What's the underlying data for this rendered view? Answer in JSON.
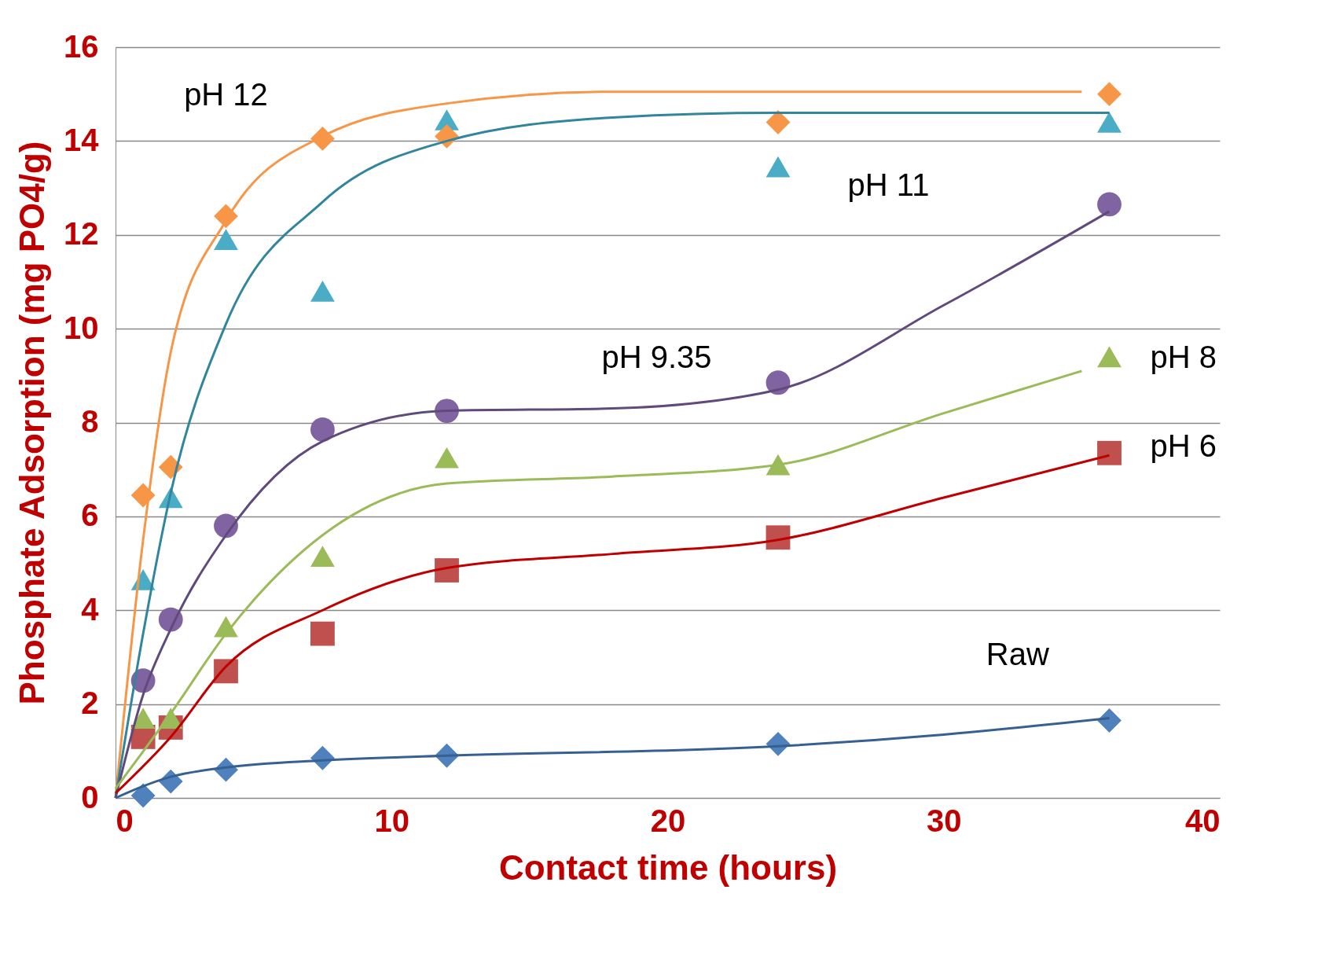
{
  "chart_data": {
    "type": "scatter",
    "xlabel": "Contact time (hours)",
    "ylabel": "Phosphate Adsorption (mg PO4/g)",
    "xlim": [
      0,
      40
    ],
    "xticks": [
      0,
      10,
      20,
      30,
      40
    ],
    "ylim": [
      0,
      16
    ],
    "yticks": [
      0,
      2,
      4,
      6,
      8,
      10,
      12,
      14,
      16
    ],
    "grid": "y",
    "series": [
      {
        "type": "line",
        "color": "#f79646",
        "x": [
          0,
          1,
          2,
          4,
          7.5,
          12,
          18,
          24,
          35
        ],
        "values": [
          0,
          5.5,
          9.5,
          12.3,
          14.1,
          14.8,
          15.05,
          15.05,
          15.05
        ]
      },
      {
        "type": "line",
        "color": "#31859c",
        "x": [
          0,
          1,
          2,
          4,
          7.5,
          12,
          18,
          24,
          36
        ],
        "values": [
          0,
          3.5,
          6.5,
          10.1,
          12.7,
          14.0,
          14.5,
          14.6,
          14.6
        ]
      },
      {
        "type": "line",
        "color": "#604a7b",
        "x": [
          0,
          1,
          2,
          4,
          7.5,
          12,
          18,
          24,
          30,
          36
        ],
        "values": [
          0,
          2.2,
          3.6,
          5.6,
          7.6,
          8.25,
          8.3,
          8.7,
          10.5,
          12.5
        ]
      },
      {
        "type": "line",
        "color": "#9bbb59",
        "x": [
          0,
          2,
          4,
          7.5,
          12,
          18,
          24,
          30,
          35
        ],
        "values": [
          0.2,
          1.8,
          3.5,
          5.6,
          6.7,
          6.85,
          7.1,
          8.2,
          9.1
        ]
      },
      {
        "type": "line",
        "color": "#c00000",
        "x": [
          0,
          2,
          4,
          7.5,
          12,
          18,
          24,
          30,
          36
        ],
        "values": [
          0.1,
          1.3,
          2.8,
          4.0,
          4.9,
          5.2,
          5.5,
          6.4,
          7.3
        ]
      },
      {
        "type": "line",
        "color": "#376092",
        "x": [
          0,
          1,
          2,
          4,
          7.5,
          12,
          24,
          30,
          36
        ],
        "values": [
          0,
          0.25,
          0.45,
          0.65,
          0.8,
          0.9,
          1.1,
          1.35,
          1.7
        ]
      },
      {
        "type": "scatter",
        "marker": "diamond",
        "color": "#4f81bd",
        "x": [
          1,
          2,
          4,
          7.5,
          12,
          24,
          36
        ],
        "values": [
          0.05,
          0.35,
          0.6,
          0.85,
          0.9,
          1.15,
          1.65
        ]
      },
      {
        "type": "scatter",
        "marker": "square",
        "color": "#c0504d",
        "x": [
          1,
          2,
          4,
          7.5,
          12,
          24,
          36
        ],
        "values": [
          1.3,
          1.5,
          2.7,
          3.5,
          4.85,
          5.55,
          7.35
        ]
      },
      {
        "type": "scatter",
        "marker": "triangle",
        "color": "#9bbb59",
        "x": [
          1,
          2,
          4,
          7.5,
          12,
          24,
          36
        ],
        "values": [
          1.7,
          1.7,
          3.65,
          5.15,
          7.25,
          7.1,
          9.4
        ]
      },
      {
        "type": "scatter",
        "marker": "circle",
        "color": "#8064a2",
        "x": [
          1,
          2,
          4,
          7.5,
          12,
          24,
          36
        ],
        "values": [
          2.5,
          3.8,
          5.8,
          7.85,
          8.25,
          8.85,
          12.65
        ]
      },
      {
        "type": "scatter",
        "marker": "triangle",
        "color": "#4bacc6",
        "x": [
          1,
          2,
          4,
          7.5,
          12,
          24,
          36
        ],
        "values": [
          4.65,
          6.4,
          11.9,
          10.8,
          14.45,
          13.45,
          14.4
        ]
      },
      {
        "type": "scatter",
        "marker": "diamond",
        "color": "#f79646",
        "x": [
          1,
          2,
          4,
          7.5,
          12,
          24,
          36
        ],
        "values": [
          6.45,
          7.05,
          12.4,
          14.05,
          14.1,
          14.4,
          15.0
        ]
      }
    ],
    "annotations": [
      "pH 12",
      "pH 11",
      "pH 9.35",
      "pH 8",
      "pH 6",
      "Raw"
    ]
  }
}
